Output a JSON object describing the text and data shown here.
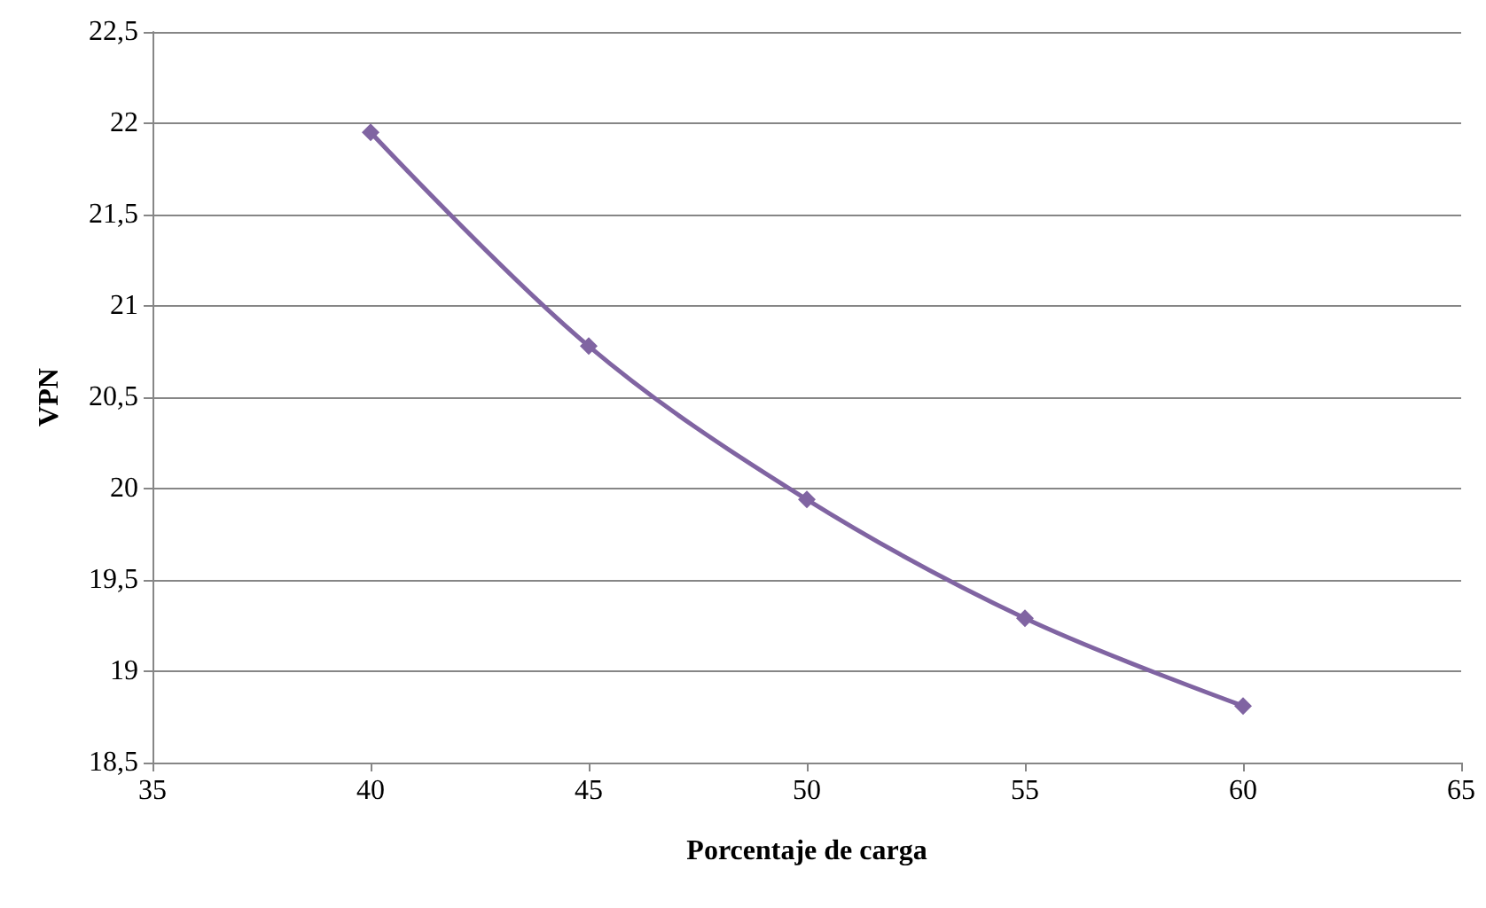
{
  "chart_data": {
    "type": "line",
    "xlabel": "Porcentaje de carga",
    "ylabel": "VPN",
    "x": [
      40,
      45,
      50,
      55,
      60
    ],
    "series": [
      {
        "color": "#8064a2",
        "values": [
          21.95,
          20.78,
          19.94,
          19.29,
          18.81
        ]
      }
    ],
    "xlim": [
      35,
      65
    ],
    "xticks": [
      35,
      40,
      45,
      50,
      55,
      60,
      65
    ],
    "ylim": [
      18.5,
      22.5
    ],
    "yticks": [
      {
        "value": 18.5,
        "label": "18,5"
      },
      19,
      {
        "value": 19.5,
        "label": "19,5"
      },
      20,
      {
        "value": 20.5,
        "label": "20,5"
      },
      21,
      {
        "value": 21.5,
        "label": "21,5"
      },
      22,
      {
        "value": 22.5,
        "label": "22,5"
      }
    ],
    "grid": "y",
    "marker": "diamond",
    "line_style": "solid"
  }
}
